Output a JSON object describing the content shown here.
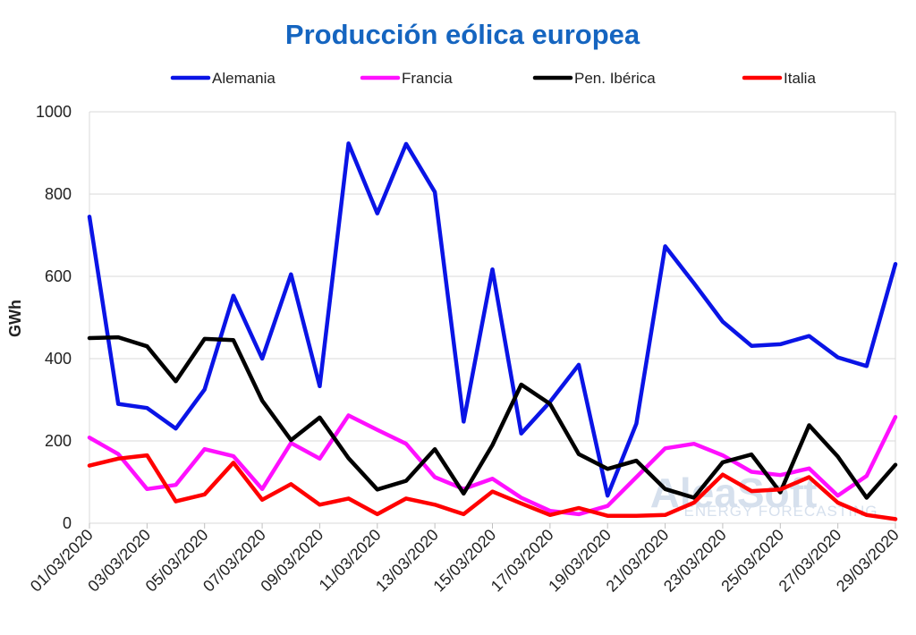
{
  "watermark": {
    "brand": "AleaSoft",
    "tagline": "ENERGY FORECASTING",
    "color": "#c9d6e8"
  },
  "chart_data": {
    "type": "line",
    "title": "Producción eólica europea",
    "title_color": "#1565c0",
    "xlabel": "",
    "ylabel": "GWh",
    "ylim": [
      0,
      1000
    ],
    "yticks": [
      0,
      200,
      400,
      600,
      800,
      1000
    ],
    "grid": true,
    "legend_position": "top",
    "x": [
      "01/03/2020",
      "02/03/2020",
      "03/03/2020",
      "04/03/2020",
      "05/03/2020",
      "06/03/2020",
      "07/03/2020",
      "08/03/2020",
      "09/03/2020",
      "10/03/2020",
      "11/03/2020",
      "12/03/2020",
      "13/03/2020",
      "14/03/2020",
      "15/03/2020",
      "16/03/2020",
      "17/03/2020",
      "18/03/2020",
      "19/03/2020",
      "20/03/2020",
      "21/03/2020",
      "22/03/2020",
      "23/03/2020",
      "24/03/2020",
      "25/03/2020",
      "26/03/2020",
      "27/03/2020",
      "28/03/2020",
      "29/03/2020"
    ],
    "x_tick_labels": [
      "01/03/2020",
      "03/03/2020",
      "05/03/2020",
      "07/03/2020",
      "09/03/2020",
      "11/03/2020",
      "13/03/2020",
      "15/03/2020",
      "17/03/2020",
      "19/03/2020",
      "21/03/2020",
      "23/03/2020",
      "25/03/2020",
      "27/03/2020",
      "29/03/2020"
    ],
    "series": [
      {
        "name": "Alemania",
        "color": "#0a14e6",
        "values": [
          745,
          290,
          280,
          230,
          325,
          553,
          400,
          605,
          333,
          923,
          753,
          922,
          805,
          247,
          617,
          218,
          295,
          385,
          67,
          242,
          673,
          583,
          490,
          431,
          435,
          455,
          403,
          382,
          630
        ]
      },
      {
        "name": "Francia",
        "color": "#ff10ff",
        "values": [
          208,
          168,
          83,
          93,
          180,
          163,
          83,
          195,
          157,
          262,
          227,
          193,
          112,
          83,
          108,
          62,
          30,
          22,
          42,
          112,
          182,
          193,
          165,
          125,
          117,
          133,
          67,
          115,
          258
        ]
      },
      {
        "name": "Pen. Ibérica",
        "color": "#000000",
        "values": [
          450,
          452,
          430,
          345,
          448,
          445,
          298,
          202,
          257,
          158,
          82,
          103,
          180,
          72,
          190,
          337,
          290,
          168,
          132,
          152,
          83,
          62,
          148,
          167,
          75,
          238,
          162,
          62,
          142
        ]
      },
      {
        "name": "Italia",
        "color": "#ff0000",
        "values": [
          140,
          157,
          165,
          53,
          70,
          147,
          57,
          95,
          45,
          60,
          22,
          60,
          45,
          22,
          77,
          48,
          20,
          37,
          18,
          18,
          20,
          50,
          118,
          78,
          82,
          112,
          50,
          20,
          10
        ]
      }
    ]
  }
}
